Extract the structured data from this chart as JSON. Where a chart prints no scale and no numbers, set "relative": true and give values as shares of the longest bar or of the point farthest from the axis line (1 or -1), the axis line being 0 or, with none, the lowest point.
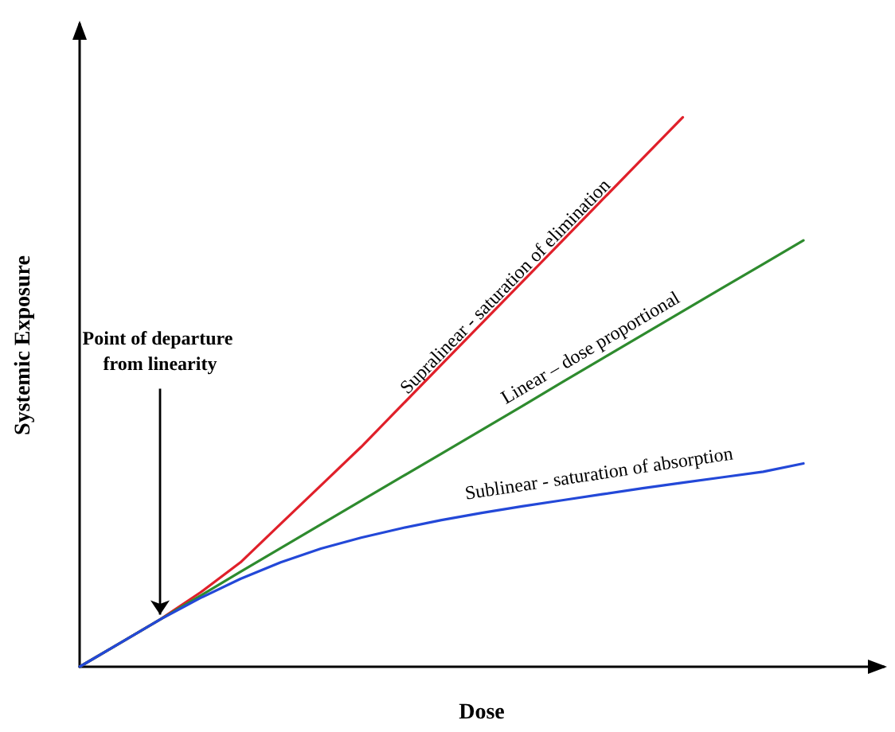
{
  "chart_data": {
    "type": "line",
    "relative": true,
    "xlabel": "Dose",
    "ylabel": "Systemic Exposure",
    "grid": false,
    "legend": false,
    "marker": "none",
    "line_style": "solid",
    "categories": [
      null,
      null,
      null,
      null,
      null,
      null,
      null,
      null,
      null,
      null,
      null,
      null,
      null,
      null,
      null,
      null,
      null,
      null,
      null,
      null,
      null
    ],
    "series": [
      {
        "name": "Supralinear - saturation of elimination",
        "color": "#e0202a",
        "values": [
          0,
          0.043,
          0.086,
          0.135,
          0.19,
          0.26,
          0.33,
          0.4,
          0.475,
          0.55,
          0.625,
          0.7,
          0.775,
          0.85,
          0.925,
          1.0,
          null,
          null,
          null,
          null,
          null
        ]
      },
      {
        "name": "Linear – dose proportional",
        "color": "#2e8b2e",
        "values": [
          0,
          0.043,
          0.086,
          0.129,
          0.173,
          0.216,
          0.259,
          0.302,
          0.345,
          0.388,
          0.431,
          0.474,
          0.518,
          0.561,
          0.604,
          0.647,
          0.69,
          0.733,
          0.776,
          null,
          null
        ]
      },
      {
        "name": "Sublinear - saturation of absorption",
        "color": "#2348d8",
        "values": [
          0,
          0.043,
          0.086,
          0.125,
          0.16,
          0.19,
          0.215,
          0.235,
          0.252,
          0.267,
          0.28,
          0.292,
          0.303,
          0.314,
          0.325,
          0.335,
          0.345,
          0.355,
          0.37,
          null,
          null
        ]
      }
    ],
    "annotations": [
      "Point of departure from linearity"
    ]
  }
}
